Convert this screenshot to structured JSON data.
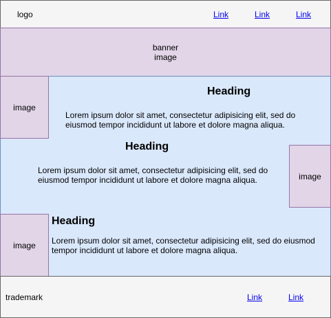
{
  "header": {
    "logo": "logo",
    "links": [
      "Link",
      "Link",
      "Link"
    ]
  },
  "banner": {
    "line1": "banner",
    "line2": "image"
  },
  "sections": [
    {
      "heading": "Heading",
      "text_line1": "Lorem ipsum dolor sit amet, consectetur adipisicing elit, sed do",
      "text_line2": "eiusmod tempor incididunt ut labore et dolore magna aliqua.",
      "image_label": "image"
    },
    {
      "heading": "Heading",
      "text_line1": "Lorem ipsum dolor sit amet, consectetur adipisicing elit, sed do",
      "text_line2": "eiusmod tempor incididunt ut labore et dolore magna aliqua.",
      "image_label": "image"
    },
    {
      "heading": "Heading",
      "text_line1": "Lorem ipsum dolor sit amet, consectetur adipisicing elit, sed do eiusmod",
      "text_line2": "tempor incididunt ut labore et dolore magna aliqua.",
      "image_label": "image"
    }
  ],
  "footer": {
    "trademark": "trademark",
    "links": [
      "Link",
      "Link"
    ]
  },
  "colors": {
    "header_bg": "#f5f5f5",
    "purple_fill": "#e1d5e7",
    "purple_stroke": "#9673a6",
    "blue_fill": "#dae8fc",
    "blue_stroke": "#6c8ebf",
    "link": "#0000ee"
  }
}
